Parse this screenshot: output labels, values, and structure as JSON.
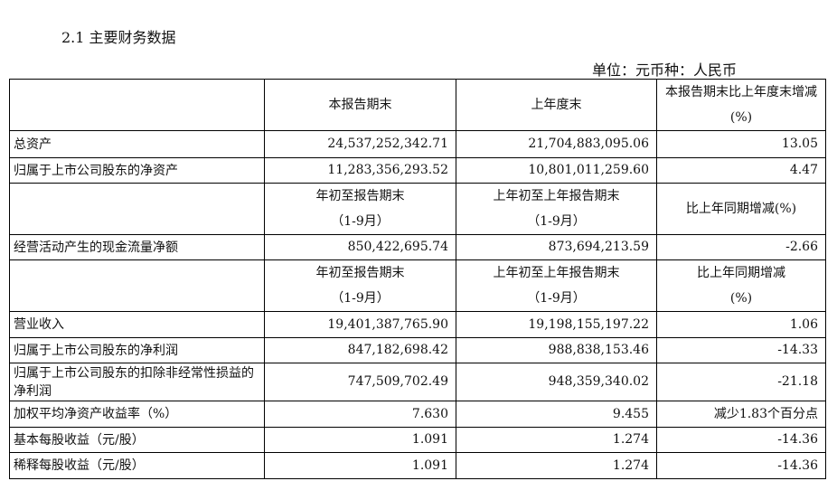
{
  "title": "2.1 主要财务数据",
  "unit": "单位：元币种：人民币",
  "header1": [
    "",
    "本报告期末",
    "上年度末",
    "本报告期末比上年度末增减(%)"
  ],
  "balance_rows": [
    {
      "label": "总资产",
      "v1": "24,537,252,342.71",
      "v2": "21,704,883,095.06",
      "chg": "13.05"
    },
    {
      "label": "归属于上市公司股东的净资产",
      "v1": "11,283,356,293.52",
      "v2": "10,801,011,259.60",
      "chg": "4.47"
    }
  ],
  "header2": {
    "c1a": "年初至报告期末",
    "c1b": "（1-9月）",
    "c2a": "上年初至上年报告期末",
    "c2b": "（1-9月）",
    "c3": "比上年同期增减(%)"
  },
  "cash_row": {
    "label": "经营活动产生的现金流量净额",
    "v1": "850,422,695.74",
    "v2": "873,694,213.59",
    "chg": "-2.66"
  },
  "header3": {
    "c1a": "年初至报告期末",
    "c1b": "（1-9月）",
    "c2a": "上年初至上年报告期末",
    "c2b": "（1-9月）",
    "c3a": "比上年同期增减",
    "c3b": "(%)"
  },
  "income_rows": [
    {
      "label": "营业收入",
      "v1": "19,401,387,765.90",
      "v2": "19,198,155,197.22",
      "chg": "1.06"
    },
    {
      "label": "归属于上市公司股东的净利润",
      "v1": "847,182,698.42",
      "v2": "988,838,153.46",
      "chg": "-14.33"
    },
    {
      "label": "归属于上市公司股东的扣除非经常性损益的净利润",
      "v1": "747,509,702.49",
      "v2": "948,359,340.02",
      "chg": "-21.18"
    },
    {
      "label": "加权平均净资产收益率（%）",
      "v1": "7.630",
      "v2": "9.455",
      "chg": "减少1.83个百分点"
    },
    {
      "label": "基本每股收益（元/股）",
      "v1": "1.091",
      "v2": "1.274",
      "chg": "-14.36"
    },
    {
      "label": "稀释每股收益（元/股）",
      "v1": "1.091",
      "v2": "1.274",
      "chg": "-14.36"
    }
  ]
}
